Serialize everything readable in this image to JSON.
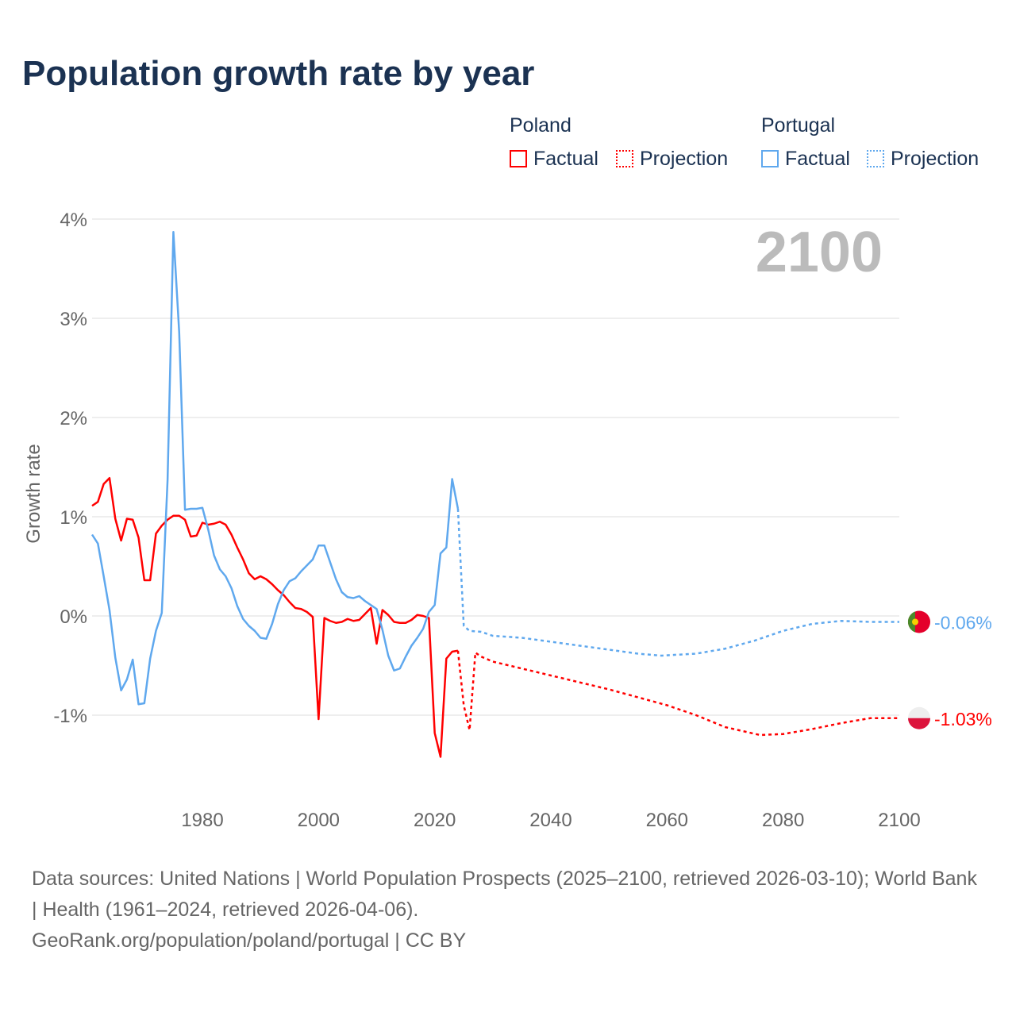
{
  "title": "Population growth rate by year",
  "legend": {
    "poland": "Poland",
    "portugal": "Portugal",
    "factual": "Factual",
    "projection": "Projection"
  },
  "colors": {
    "poland": "#ff0000",
    "portugal": "#5fa8ee"
  },
  "source_line1": "Data sources: United Nations | World Population Prospects (2025–2100, retrieved 2026-03-10); World Bank | Health (1961–2024, retrieved 2026-04-06).",
  "source_line2": "GeoRank.org/population/poland/portugal | CC BY",
  "chart_data": {
    "type": "line",
    "title": "Population growth rate by year",
    "ylabel": "Growth rate",
    "current_year_label": "2100",
    "xlim": [
      1961,
      2100
    ],
    "ylim": [
      -1.8,
      4
    ],
    "yticks": [
      {
        "v": 4,
        "l": "4%"
      },
      {
        "v": 3,
        "l": "3%"
      },
      {
        "v": 2,
        "l": "2%"
      },
      {
        "v": 1,
        "l": "1%"
      },
      {
        "v": 0,
        "l": "0%"
      },
      {
        "v": -1,
        "l": "-1%"
      }
    ],
    "xticks": [
      {
        "v": 1980,
        "l": "1980"
      },
      {
        "v": 2000,
        "l": "2000"
      },
      {
        "v": 2020,
        "l": "2020"
      },
      {
        "v": 2040,
        "l": "2040"
      },
      {
        "v": 2060,
        "l": "2060"
      },
      {
        "v": 2080,
        "l": "2080"
      },
      {
        "v": 2100,
        "l": "2100"
      }
    ],
    "series": [
      {
        "name": "Poland",
        "key": "poland",
        "end_label": "-1.03%",
        "end_value": -1.03,
        "factual_start": 1961,
        "factual": [
          1.11,
          1.15,
          1.33,
          1.39,
          0.98,
          0.76,
          0.98,
          0.97,
          0.79,
          0.36,
          0.36,
          0.83,
          0.91,
          0.97,
          1.01,
          1.01,
          0.97,
          0.8,
          0.81,
          0.94,
          0.92,
          0.93,
          0.95,
          0.92,
          0.82,
          0.69,
          0.57,
          0.43,
          0.37,
          0.4,
          0.37,
          0.32,
          0.26,
          0.21,
          0.14,
          0.08,
          0.07,
          0.04,
          -0.01,
          -1.04,
          -0.02,
          -0.05,
          -0.07,
          -0.06,
          -0.03,
          -0.05,
          -0.04,
          0.02,
          0.08,
          -0.28,
          0.06,
          0.01,
          -0.06,
          -0.07,
          -0.07,
          -0.04,
          0.01,
          0.0,
          -0.02,
          -1.18,
          -1.42,
          -0.43,
          -0.36,
          -0.35
        ],
        "projection": [
          [
            2024,
            -0.35
          ],
          [
            2025,
            -0.9
          ],
          [
            2026,
            -1.15
          ],
          [
            2027,
            -0.37
          ],
          [
            2028,
            -0.41
          ],
          [
            2030,
            -0.46
          ],
          [
            2035,
            -0.53
          ],
          [
            2040,
            -0.6
          ],
          [
            2045,
            -0.67
          ],
          [
            2050,
            -0.74
          ],
          [
            2055,
            -0.82
          ],
          [
            2060,
            -0.9
          ],
          [
            2065,
            -1.0
          ],
          [
            2070,
            -1.12
          ],
          [
            2076,
            -1.2
          ],
          [
            2080,
            -1.19
          ],
          [
            2085,
            -1.14
          ],
          [
            2090,
            -1.08
          ],
          [
            2095,
            -1.03
          ],
          [
            2100,
            -1.03
          ]
        ]
      },
      {
        "name": "Portugal",
        "key": "portugal",
        "end_label": "-0.06%",
        "end_value": -0.06,
        "factual_start": 1961,
        "factual": [
          0.82,
          0.73,
          0.4,
          0.06,
          -0.42,
          -0.75,
          -0.64,
          -0.44,
          -0.89,
          -0.88,
          -0.43,
          -0.15,
          0.03,
          1.37,
          3.87,
          2.86,
          1.07,
          1.08,
          1.08,
          1.09,
          0.87,
          0.61,
          0.47,
          0.4,
          0.28,
          0.1,
          -0.03,
          -0.1,
          -0.15,
          -0.22,
          -0.23,
          -0.08,
          0.12,
          0.26,
          0.35,
          0.38,
          0.45,
          0.51,
          0.57,
          0.71,
          0.71,
          0.54,
          0.37,
          0.24,
          0.19,
          0.18,
          0.2,
          0.15,
          0.11,
          0.07,
          -0.14,
          -0.4,
          -0.55,
          -0.53,
          -0.41,
          -0.3,
          -0.22,
          -0.13,
          0.04,
          0.11,
          0.63,
          0.69,
          1.38,
          1.08
        ],
        "projection": [
          [
            2024,
            1.08
          ],
          [
            2025,
            -0.1
          ],
          [
            2026,
            -0.15
          ],
          [
            2028,
            -0.16
          ],
          [
            2030,
            -0.2
          ],
          [
            2035,
            -0.22
          ],
          [
            2040,
            -0.26
          ],
          [
            2045,
            -0.3
          ],
          [
            2050,
            -0.34
          ],
          [
            2055,
            -0.38
          ],
          [
            2059,
            -0.4
          ],
          [
            2065,
            -0.38
          ],
          [
            2070,
            -0.33
          ],
          [
            2075,
            -0.25
          ],
          [
            2080,
            -0.15
          ],
          [
            2085,
            -0.08
          ],
          [
            2090,
            -0.05
          ],
          [
            2095,
            -0.06
          ],
          [
            2100,
            -0.06
          ]
        ]
      }
    ]
  }
}
